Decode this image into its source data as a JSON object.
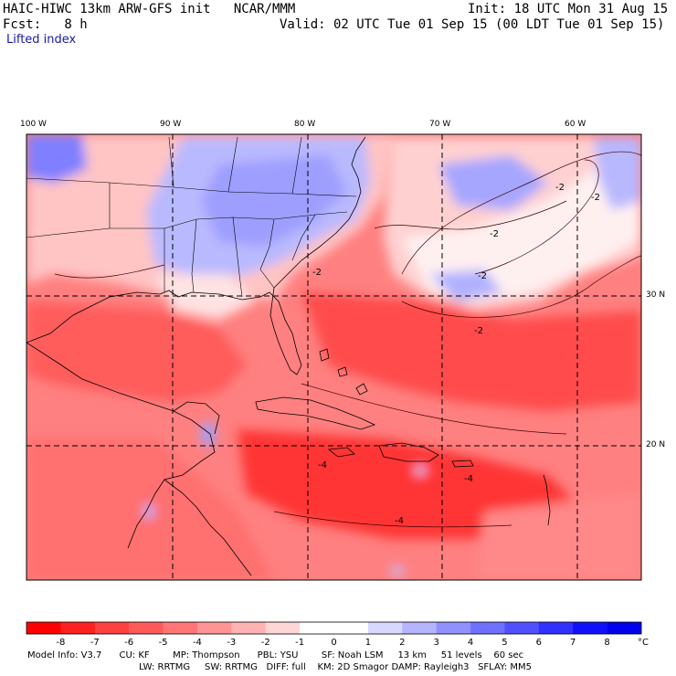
{
  "header": {
    "title": "HAIC-HIWC 13km ARW-GFS init   NCAR/MMM",
    "init": "Init: 18 UTC Mon 31 Aug 15",
    "fcst": "Fcst:   8 h",
    "valid": "Valid: 02 UTC Tue 01 Sep 15 (00 LDT Tue 01 Sep 15)",
    "field": "Lifted index"
  },
  "axes": {
    "lon_labels": [
      "100 W",
      "90 W",
      "80 W",
      "70 W",
      "60 W"
    ],
    "lat_labels": [
      "30 N",
      "20 N"
    ]
  },
  "map_features": {
    "projection_grid": "dashed lat/lon lines every 10 degrees",
    "regions": [
      "southeast United States",
      "Gulf of Mexico",
      "Caribbean Sea",
      "western Atlantic",
      "Central America"
    ],
    "colors": {
      "neg8": "#ff0000",
      "neg7": "#ff2020",
      "neg6": "#ff4040",
      "neg5": "#ff5a5a",
      "neg4": "#ff7676",
      "neg3": "#ff9494",
      "neg2": "#ffb2b2",
      "neg1": "#ffd6d6",
      "zero": "#ffffff",
      "pos1": "#d8d8ff",
      "pos2": "#b4b4ff",
      "pos3": "#9090ff",
      "pos4": "#7070ff",
      "pos5": "#5050ff",
      "pos6": "#3030ff",
      "pos7": "#1010ff",
      "pos8": "#0000ee"
    },
    "contour_labels": [
      "-2",
      "-2",
      "-2",
      "-2",
      "-2",
      "-2",
      "-4",
      "-4",
      "-4"
    ]
  },
  "colorbar": {
    "ticks": [
      "-8",
      "-7",
      "-6",
      "-5",
      "-4",
      "-3",
      "-2",
      "-1",
      "0",
      "1",
      "2",
      "3",
      "4",
      "5",
      "6",
      "7",
      "8"
    ],
    "unit": "°C"
  },
  "model_info": {
    "line1": "Model Info: V3.7      CU: KF        MP: Thompson      PBL: YSU        SF: Noah LSM     13 km     51 levels    60 sec",
    "line2": "LW: RRTMG     SW: RRTMG   DIFF: full    KM: 2D Smagor DAMP: Rayleigh3   SFLAY: MM5"
  }
}
